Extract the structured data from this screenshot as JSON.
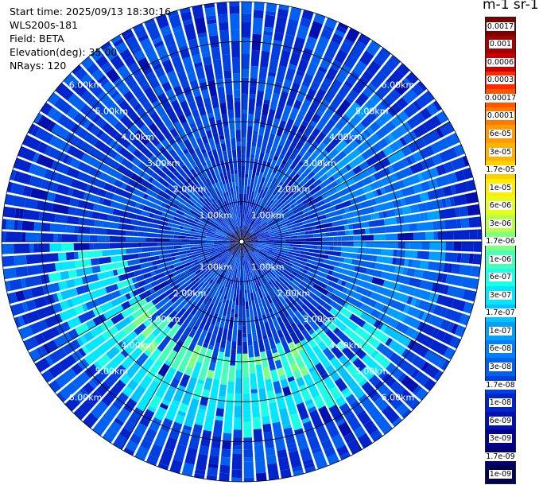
{
  "info": {
    "start_time": "Start time: 2025/09/13 18:30:16",
    "instrument": "WLS200s-181",
    "field": "Field: BETA",
    "elevation": "Elevation(deg): 35.00",
    "nrays": "NRays: 120"
  },
  "colorbar": {
    "unit_label": "m-1 sr-1",
    "levels": [
      {
        "label": "0.0017",
        "color": "#7a0000"
      },
      {
        "label": "0.001",
        "color": "#a30000"
      },
      {
        "label": "0.0006",
        "color": "#cc0000"
      },
      {
        "label": "0.0003",
        "color": "#ff2a00"
      },
      {
        "label": "0.00017",
        "color": "#ff5500"
      },
      {
        "label": "0.0001",
        "color": "#ff7b00"
      },
      {
        "label": "6e-05",
        "color": "#ff9a00"
      },
      {
        "label": "3e-05",
        "color": "#ffb300"
      },
      {
        "label": "1.7e-05",
        "color": "#ffd000"
      },
      {
        "label": "1e-05",
        "color": "#ffee00"
      },
      {
        "label": "6e-06",
        "color": "#e5ff1a"
      },
      {
        "label": "3e-06",
        "color": "#b8ff47"
      },
      {
        "label": "1.7e-06",
        "color": "#80ff80"
      },
      {
        "label": "1e-06",
        "color": "#47ffb8"
      },
      {
        "label": "6e-07",
        "color": "#1affe5"
      },
      {
        "label": "3e-07",
        "color": "#00e8ff"
      },
      {
        "label": "1.7e-07",
        "color": "#00c4ff"
      },
      {
        "label": "1e-07",
        "color": "#00a0ff"
      },
      {
        "label": "6e-08",
        "color": "#0080ff"
      },
      {
        "label": "3e-08",
        "color": "#0060f0"
      },
      {
        "label": "1.7e-08",
        "color": "#0040e0"
      },
      {
        "label": "1e-08",
        "color": "#0024cc"
      },
      {
        "label": "6e-09",
        "color": "#0010b0"
      },
      {
        "label": "3e-09",
        "color": "#00008f"
      },
      {
        "label": "1.7e-09",
        "color": "#000070"
      },
      {
        "label": "1e-09",
        "color": "#00004f"
      }
    ]
  },
  "chart_data": {
    "type": "heatmap",
    "projection": "polar-ppi",
    "field": "BETA",
    "elevation_deg": 35.0,
    "n_rays": 120,
    "max_range_km": 6.0,
    "range_rings_km": [
      1.0,
      2.0,
      3.0,
      4.0,
      5.0,
      6.0
    ],
    "range_ring_labels": [
      "1.00km",
      "2.00km",
      "3.00km",
      "4.00km",
      "5.00km",
      "6.00km"
    ],
    "azimuth_lines_deg": [
      0,
      30,
      60,
      90,
      120,
      150,
      180,
      210,
      240,
      270,
      300,
      330
    ],
    "background_level": "1.7e-08",
    "features": [
      {
        "name": "dark-blue radial streak",
        "azimuth_deg": [
          5,
          15
        ],
        "range_km": [
          0.2,
          2.0
        ],
        "level": "1e-08"
      },
      {
        "name": "cyan arc",
        "azimuth_deg": [
          120,
          270
        ],
        "range_km": [
          3.0,
          4.8
        ],
        "level": "3e-07"
      },
      {
        "name": "light-green patches",
        "azimuth_deg": [
          150,
          240
        ],
        "range_km": [
          2.8,
          3.6
        ],
        "level": "1e-06"
      },
      {
        "name": "light-blue sector",
        "azimuth_deg": [
          40,
          120
        ],
        "range_km": [
          2.5,
          5.0
        ],
        "level": "6e-08"
      }
    ]
  }
}
